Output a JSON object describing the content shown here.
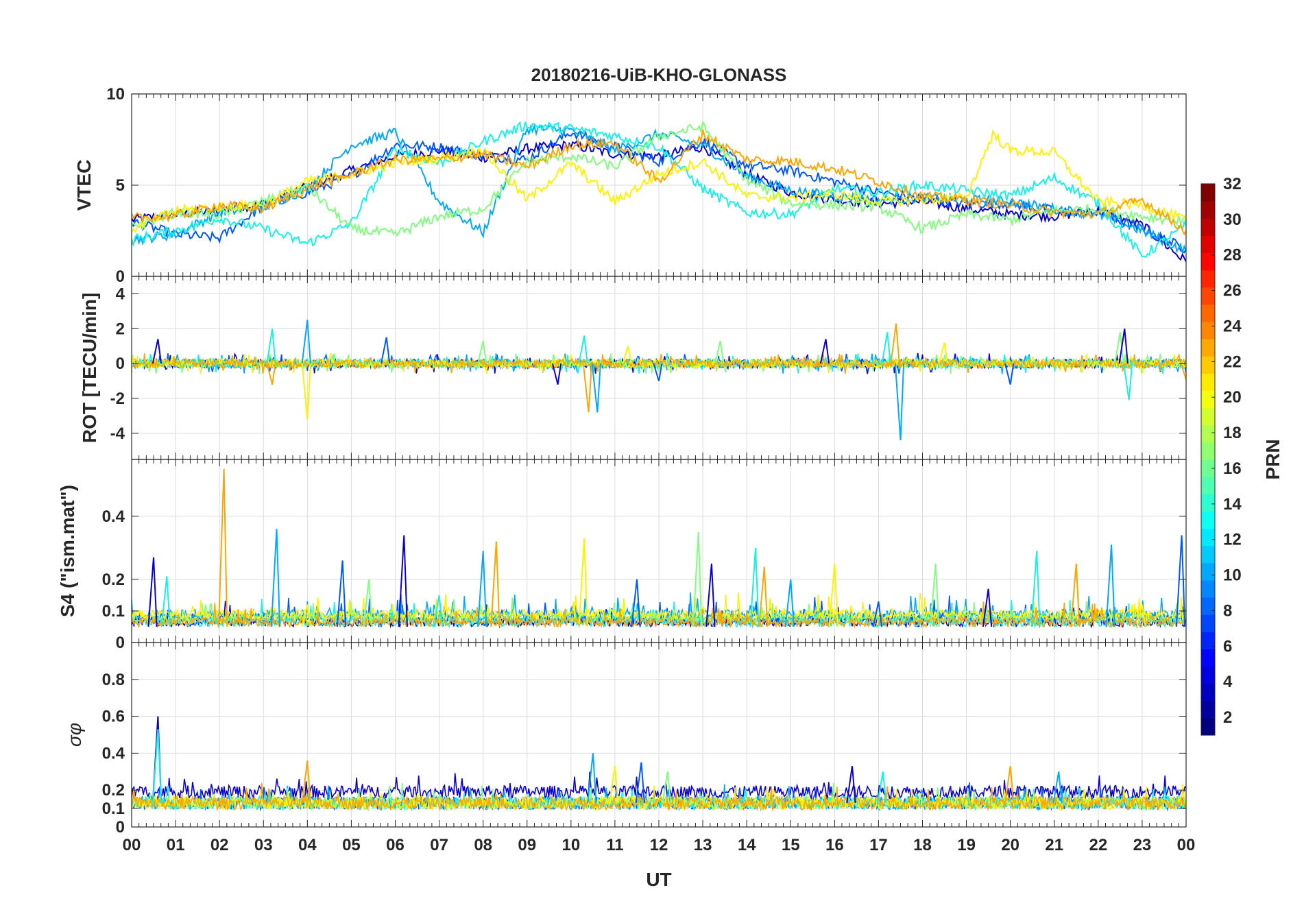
{
  "chart_data": {
    "title": "20180216-UiB-KHO-GLONASS",
    "type": "line",
    "xlabel": "UT",
    "x_ticks": [
      "00",
      "01",
      "02",
      "03",
      "04",
      "05",
      "06",
      "07",
      "08",
      "09",
      "10",
      "11",
      "12",
      "13",
      "14",
      "15",
      "16",
      "17",
      "18",
      "19",
      "20",
      "21",
      "22",
      "23",
      "00"
    ],
    "xlim_hours": [
      0,
      24
    ],
    "panels": [
      {
        "name": "vtec",
        "ylabel": "VTEC",
        "ylim": [
          0,
          10
        ],
        "yticks": [
          "0",
          "5",
          "10"
        ],
        "ytick_values": [
          0,
          5,
          10
        ],
        "series": [
          {
            "name": "PRN 2",
            "values": [
              [
                0,
                3.1
              ],
              [
                1,
                3.4
              ],
              [
                2,
                3.6
              ],
              [
                3,
                4.0
              ],
              [
                4,
                4.9
              ],
              [
                5,
                5.8
              ],
              [
                6,
                6.6
              ],
              [
                7,
                6.9
              ],
              [
                8,
                6.5
              ],
              [
                9,
                7.0
              ],
              [
                10,
                7.2
              ],
              [
                11,
                6.7
              ],
              [
                12,
                6.6
              ],
              [
                13,
                7.1
              ],
              [
                14,
                5.6
              ],
              [
                15,
                4.6
              ],
              [
                16,
                4.2
              ],
              [
                17,
                4.0
              ],
              [
                18,
                4.1
              ],
              [
                19,
                3.7
              ],
              [
                20,
                3.4
              ],
              [
                21,
                3.3
              ],
              [
                22,
                3.6
              ],
              [
                23,
                2.8
              ],
              [
                24,
                0.8
              ]
            ]
          },
          {
            "name": "PRN 6",
            "values": [
              [
                0,
                3.0
              ],
              [
                1,
                2.3
              ],
              [
                2,
                2.1
              ],
              [
                3,
                3.9
              ],
              [
                4,
                4.6
              ],
              [
                5,
                5.5
              ],
              [
                6,
                7.2
              ],
              [
                7,
                7.1
              ],
              [
                8,
                6.6
              ],
              [
                9,
                6.4
              ],
              [
                10,
                7.9
              ],
              [
                11,
                7.1
              ],
              [
                12,
                6.3
              ],
              [
                13,
                7.4
              ],
              [
                14,
                6.1
              ],
              [
                15,
                5.8
              ],
              [
                16,
                5.2
              ],
              [
                17,
                4.6
              ],
              [
                18,
                4.3
              ],
              [
                19,
                4.0
              ],
              [
                20,
                4.0
              ],
              [
                21,
                3.6
              ],
              [
                22,
                3.5
              ],
              [
                23,
                2.6
              ],
              [
                24,
                1.5
              ]
            ]
          },
          {
            "name": "PRN 10",
            "values": [
              [
                0,
                2.0
              ],
              [
                1,
                2.3
              ],
              [
                2,
                3.5
              ],
              [
                3,
                3.8
              ],
              [
                4,
                4.8
              ],
              [
                5,
                7.2
              ],
              [
                6,
                7.9
              ],
              [
                7,
                4.1
              ],
              [
                8,
                2.4
              ],
              [
                9,
                8.1
              ],
              [
                10,
                8.0
              ],
              [
                11,
                6.9
              ],
              [
                12,
                7.8
              ],
              [
                13,
                7.2
              ],
              [
                14,
                5.5
              ],
              [
                15,
                4.7
              ],
              [
                16,
                4.4
              ],
              [
                17,
                4.2
              ],
              [
                18,
                4.3
              ],
              [
                19,
                4.2
              ],
              [
                20,
                4.1
              ],
              [
                21,
                3.7
              ],
              [
                22,
                3.4
              ],
              [
                23,
                2.5
              ],
              [
                24,
                1.4
              ]
            ]
          },
          {
            "name": "PRN 13",
            "values": [
              [
                0,
                2.0
              ],
              [
                1,
                2.5
              ],
              [
                2,
                3.2
              ],
              [
                3,
                2.6
              ],
              [
                4,
                1.8
              ],
              [
                5,
                2.9
              ],
              [
                6,
                7.0
              ],
              [
                7,
                6.2
              ],
              [
                8,
                7.4
              ],
              [
                9,
                8.3
              ],
              [
                10,
                8.1
              ],
              [
                11,
                7.7
              ],
              [
                12,
                7.1
              ],
              [
                13,
                4.8
              ],
              [
                14,
                3.5
              ],
              [
                15,
                3.4
              ],
              [
                16,
                4.8
              ],
              [
                17,
                4.6
              ],
              [
                18,
                5.0
              ],
              [
                19,
                4.7
              ],
              [
                20,
                4.4
              ],
              [
                21,
                5.4
              ],
              [
                22,
                4.0
              ],
              [
                23,
                1.1
              ],
              [
                24,
                2.8
              ]
            ]
          },
          {
            "name": "PRN 17",
            "values": [
              [
                0,
                2.7
              ],
              [
                1,
                3.5
              ],
              [
                2,
                3.4
              ],
              [
                3,
                4.1
              ],
              [
                4,
                4.9
              ],
              [
                5,
                2.6
              ],
              [
                6,
                2.3
              ],
              [
                7,
                3.3
              ],
              [
                8,
                3.7
              ],
              [
                9,
                6.3
              ],
              [
                10,
                6.6
              ],
              [
                11,
                6.0
              ],
              [
                12,
                7.7
              ],
              [
                13,
                8.2
              ],
              [
                14,
                5.3
              ],
              [
                15,
                4.0
              ],
              [
                16,
                3.9
              ],
              [
                17,
                3.8
              ],
              [
                18,
                2.6
              ],
              [
                19,
                3.4
              ],
              [
                20,
                3.1
              ],
              [
                21,
                3.6
              ],
              [
                22,
                3.7
              ],
              [
                23,
                3.3
              ],
              [
                24,
                3.0
              ]
            ]
          },
          {
            "name": "PRN 20",
            "values": [
              [
                0,
                2.6
              ],
              [
                1,
                3.6
              ],
              [
                2,
                3.8
              ],
              [
                3,
                3.9
              ],
              [
                4,
                5.2
              ],
              [
                5,
                5.6
              ],
              [
                6,
                6.2
              ],
              [
                7,
                6.5
              ],
              [
                8,
                6.9
              ],
              [
                9,
                4.2
              ],
              [
                10,
                6.2
              ],
              [
                11,
                4.1
              ],
              [
                12,
                5.6
              ],
              [
                13,
                6.3
              ],
              [
                14,
                4.4
              ],
              [
                15,
                4.3
              ],
              [
                16,
                4.5
              ],
              [
                17,
                4.1
              ],
              [
                18,
                4.2
              ],
              [
                19,
                4.3
              ],
              [
                19.6,
                7.8
              ],
              [
                20,
                6.9
              ],
              [
                21,
                6.8
              ],
              [
                22,
                4.1
              ],
              [
                23,
                3.9
              ],
              [
                24,
                3.1
              ]
            ]
          },
          {
            "name": "PRN 23",
            "values": [
              [
                0,
                3.2
              ],
              [
                1,
                3.3
              ],
              [
                2,
                3.9
              ],
              [
                3,
                3.7
              ],
              [
                4,
                4.8
              ],
              [
                5,
                5.6
              ],
              [
                6,
                6.4
              ],
              [
                7,
                6.4
              ],
              [
                8,
                6.7
              ],
              [
                9,
                6.0
              ],
              [
                10,
                7.2
              ],
              [
                11,
                7.3
              ],
              [
                12,
                5.2
              ],
              [
                13,
                7.8
              ],
              [
                14,
                6.4
              ],
              [
                15,
                6.3
              ],
              [
                16,
                5.9
              ],
              [
                17,
                5.2
              ],
              [
                18,
                4.4
              ],
              [
                19,
                4.2
              ],
              [
                20,
                3.9
              ],
              [
                21,
                3.5
              ],
              [
                22,
                3.4
              ],
              [
                23,
                4.2
              ],
              [
                24,
                2.5
              ]
            ]
          }
        ]
      },
      {
        "name": "rot",
        "ylabel": "ROT [TECU/min]",
        "ylim": [
          -5.5,
          5
        ],
        "yticks": [
          "-4",
          "-2",
          "0",
          "2",
          "4"
        ],
        "ytick_values": [
          -4,
          -2,
          0,
          2,
          4
        ],
        "baseline": 0,
        "spikes": [
          [
            0.6,
            1.4
          ],
          [
            3.2,
            2.0
          ],
          [
            3.2,
            -1.2
          ],
          [
            4.0,
            2.5
          ],
          [
            4.0,
            -3.2
          ],
          [
            5.8,
            1.5
          ],
          [
            8.0,
            1.3
          ],
          [
            9.7,
            -1.2
          ],
          [
            10.3,
            1.6
          ],
          [
            10.4,
            -2.8
          ],
          [
            10.6,
            -2.8
          ],
          [
            11.3,
            1.0
          ],
          [
            12.0,
            -1.0
          ],
          [
            13.4,
            1.3
          ],
          [
            15.8,
            1.4
          ],
          [
            17.2,
            1.8
          ],
          [
            17.4,
            2.3
          ],
          [
            17.5,
            -4.4
          ],
          [
            18.5,
            1.2
          ],
          [
            20.0,
            -1.2
          ],
          [
            22.5,
            1.8
          ],
          [
            22.6,
            2.0
          ],
          [
            22.7,
            -2.1
          ],
          [
            24.0,
            -0.9
          ]
        ],
        "noise_amplitude": 0.5
      },
      {
        "name": "s4",
        "ylabel": "S4 (\"ism.mat\")",
        "ylim": [
          0,
          0.58
        ],
        "yticks": [
          "0",
          "0.1",
          "0.2",
          "0.4"
        ],
        "ytick_values": [
          0,
          0.1,
          0.2,
          0.4
        ],
        "baseline": 0.05,
        "spikes": [
          [
            0.5,
            0.27
          ],
          [
            0.8,
            0.21
          ],
          [
            2.1,
            0.55
          ],
          [
            3.3,
            0.36
          ],
          [
            4.0,
            0.12
          ],
          [
            4.8,
            0.26
          ],
          [
            5.4,
            0.2
          ],
          [
            6.2,
            0.34
          ],
          [
            7.0,
            0.15
          ],
          [
            8.3,
            0.32
          ],
          [
            8.0,
            0.29
          ],
          [
            10.3,
            0.33
          ],
          [
            11.5,
            0.2
          ],
          [
            12.9,
            0.35
          ],
          [
            13.2,
            0.25
          ],
          [
            14.2,
            0.3
          ],
          [
            14.4,
            0.24
          ],
          [
            15.0,
            0.2
          ],
          [
            16.0,
            0.25
          ],
          [
            17.0,
            0.13
          ],
          [
            18.3,
            0.25
          ],
          [
            19.5,
            0.17
          ],
          [
            20.6,
            0.29
          ],
          [
            21.5,
            0.25
          ],
          [
            22.3,
            0.31
          ],
          [
            23.0,
            0.12
          ],
          [
            23.9,
            0.34
          ]
        ]
      },
      {
        "name": "sigma_phi",
        "ylabel": "σφ",
        "ylim": [
          0,
          1
        ],
        "yticks": [
          "0",
          "0.1",
          "0.2",
          "0.4",
          "0.6",
          "0.8"
        ],
        "ytick_values": [
          0,
          0.1,
          0.2,
          0.4,
          0.6,
          0.8
        ],
        "baseline": 0.13,
        "spikes": [
          [
            0.6,
            0.6
          ],
          [
            0.6,
            0.53
          ],
          [
            4.0,
            0.36
          ],
          [
            10.5,
            0.4
          ],
          [
            11.0,
            0.33
          ],
          [
            11.6,
            0.35
          ],
          [
            12.2,
            0.3
          ],
          [
            16.4,
            0.33
          ],
          [
            17.1,
            0.3
          ],
          [
            20.0,
            0.33
          ],
          [
            21.1,
            0.3
          ]
        ]
      }
    ],
    "colorbar": {
      "label": "PRN",
      "ticks": [
        "2",
        "4",
        "6",
        "8",
        "10",
        "12",
        "14",
        "16",
        "18",
        "20",
        "22",
        "24",
        "26",
        "28",
        "30",
        "32"
      ],
      "tick_values": [
        2,
        4,
        6,
        8,
        10,
        12,
        14,
        16,
        18,
        20,
        22,
        24,
        26,
        28,
        30,
        32
      ],
      "range": [
        1,
        32
      ],
      "colormap": "jet"
    },
    "series_colors": {
      "PRN 2": "#0a00cf",
      "PRN 6": "#0057ff",
      "PRN 10": "#00a8ff",
      "PRN 13": "#15f2e6",
      "PRN 17": "#80ff7d",
      "PRN 20": "#fff200",
      "PRN 23": "#ffa500"
    }
  }
}
